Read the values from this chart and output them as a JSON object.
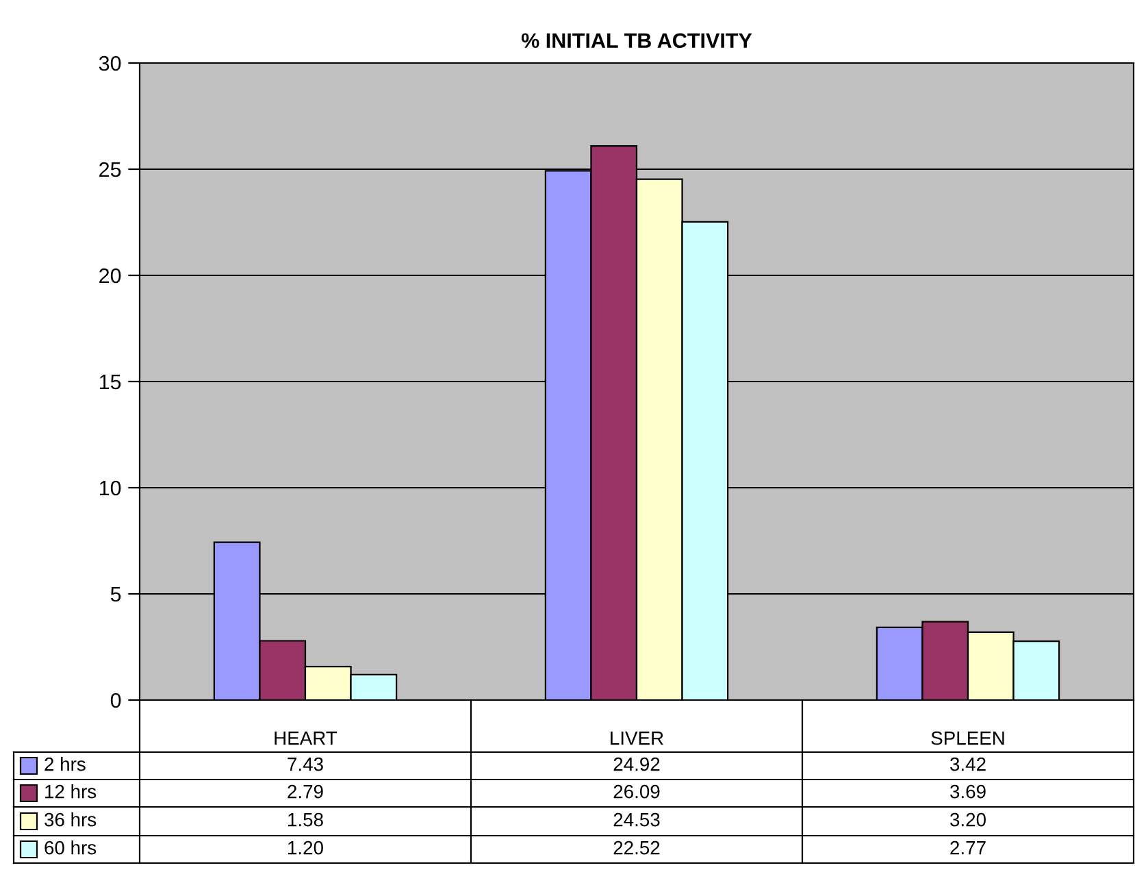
{
  "chart_data": {
    "type": "bar",
    "title": "% INITIAL TB ACTIVITY",
    "categories": [
      "HEART",
      "LIVER",
      "SPLEEN"
    ],
    "series": [
      {
        "name": "2 hrs",
        "color": "#9999ff",
        "values": [
          7.43,
          24.92,
          3.42
        ],
        "value_labels": [
          "7.43",
          "24.92",
          "3.42"
        ]
      },
      {
        "name": "12 hrs",
        "color": "#993366",
        "values": [
          2.79,
          26.09,
          3.69
        ],
        "value_labels": [
          "2.79",
          "26.09",
          "3.69"
        ]
      },
      {
        "name": "36 hrs",
        "color": "#ffffcc",
        "values": [
          1.58,
          24.53,
          3.2
        ],
        "value_labels": [
          "1.58",
          "24.53",
          "3.20"
        ]
      },
      {
        "name": "60 hrs",
        "color": "#ccffff",
        "values": [
          1.2,
          22.52,
          2.77
        ],
        "value_labels": [
          "1.20",
          "22.52",
          "2.77"
        ]
      }
    ],
    "ylim": [
      0,
      30
    ],
    "yticks": [
      0,
      5,
      10,
      15,
      20,
      25,
      30
    ],
    "grid": "y",
    "legend": "bottom",
    "tick_labels": "y"
  }
}
